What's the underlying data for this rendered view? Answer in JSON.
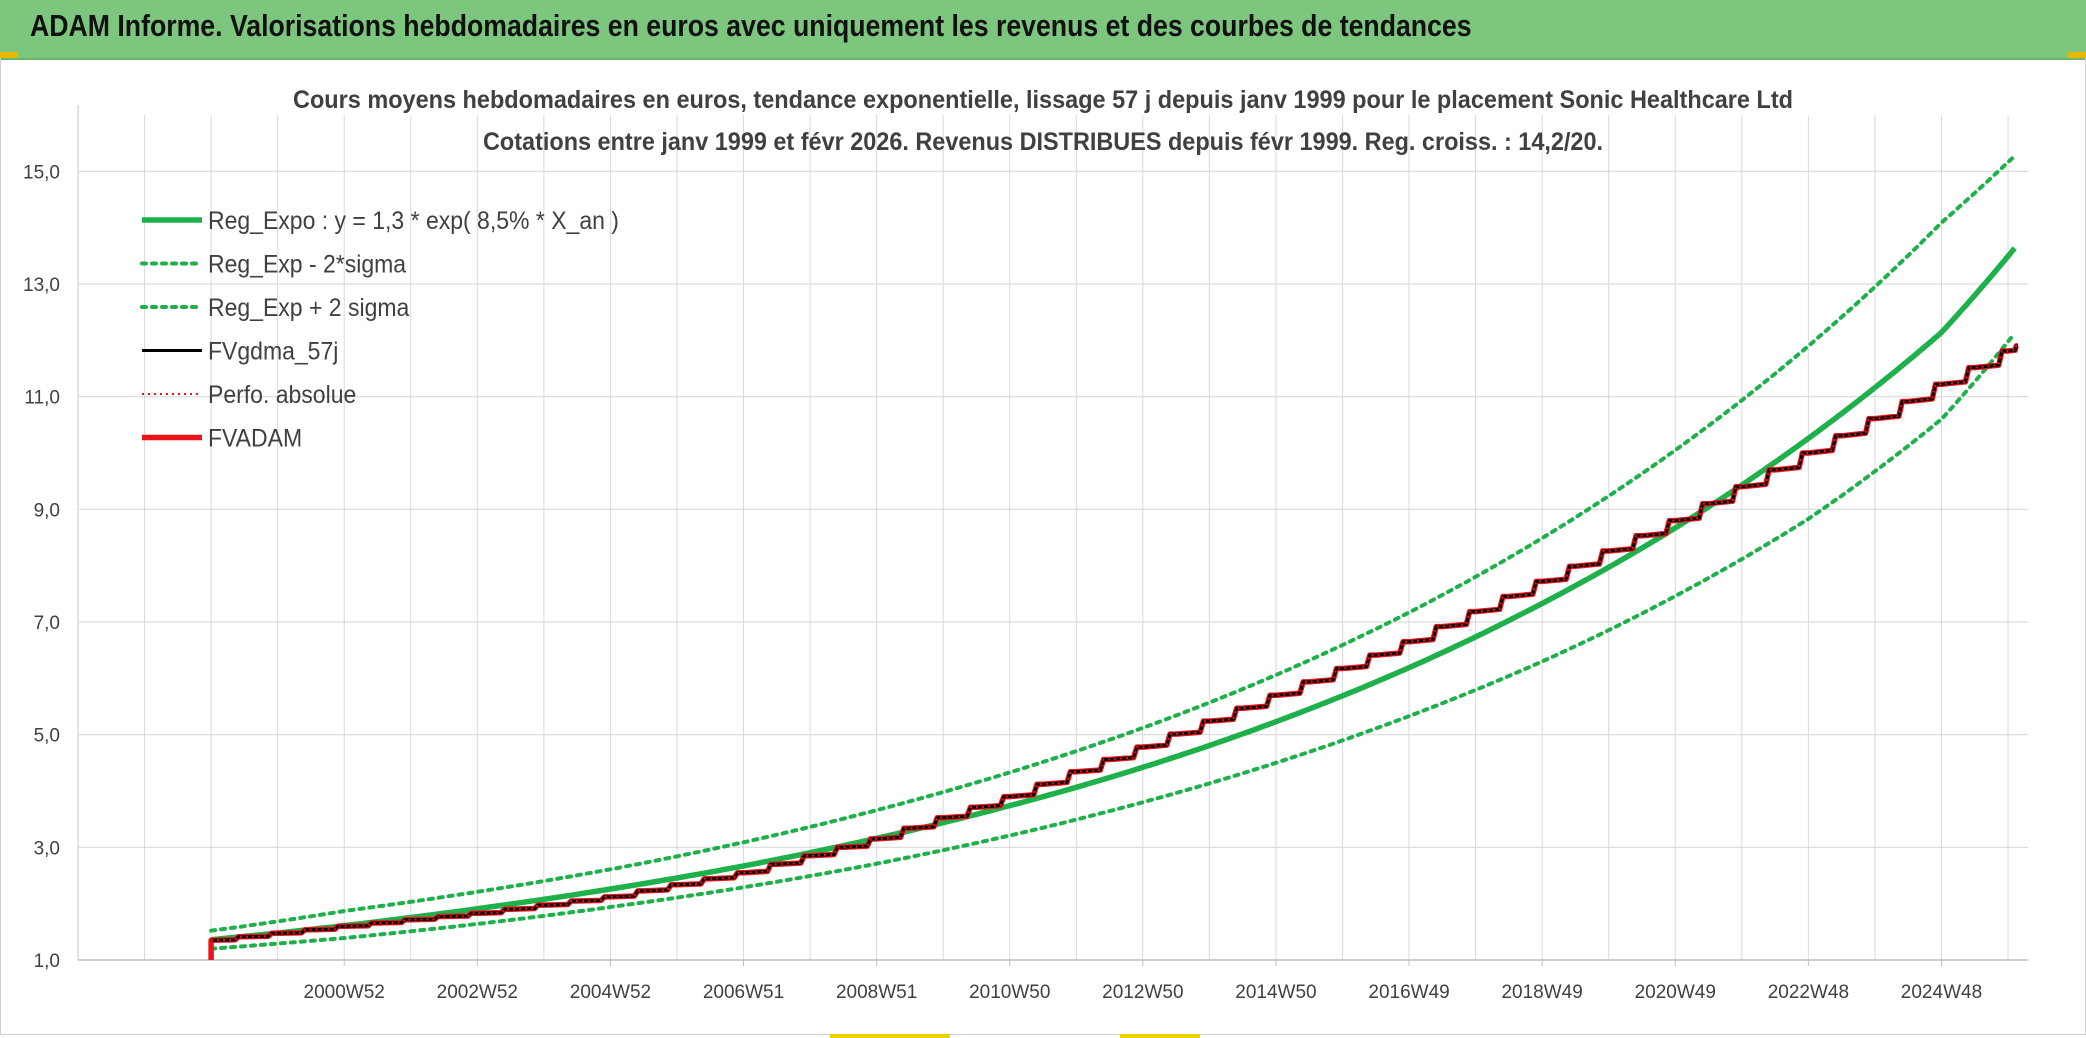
{
  "banner": {
    "title": "ADAM Informe. Valorisations hebdomadaires en euros avec uniquement les revenus et des courbes de tendances"
  },
  "colors": {
    "banner_bg": "#7dc67e",
    "reg_green": "#1db04b",
    "fvgdma_black": "#000000",
    "adam_red": "#e8141b",
    "grid": "#d9d9d9",
    "text": "#404040"
  },
  "chart_data": {
    "type": "line",
    "title": "Cours moyens hebdomadaires en euros, tendance exponentielle, lissage 57 j depuis janv 1999 pour le placement Sonic Healthcare Ltd",
    "subtitle": "Cotations entre janv 1999 et févr 2026. Revenus DISTRIBUES depuis févr 1999. Reg. croiss. : 14,2/20.",
    "xlabel": "",
    "ylabel": "",
    "ylim": [
      1.0,
      16.0
    ],
    "yticks": [
      "15,0",
      "13,0",
      "11,0",
      "9,0",
      "7,0",
      "5,0",
      "3,0",
      "1,0"
    ],
    "ytick_values": [
      15,
      13,
      11,
      9,
      7,
      5,
      3,
      1
    ],
    "xticks": [
      "2000W52",
      "2002W52",
      "2004W52",
      "2006W51",
      "2008W51",
      "2010W50",
      "2012W50",
      "2014W50",
      "2016W49",
      "2018W49",
      "2020W49",
      "2022W48",
      "2024W48"
    ],
    "xtick_years": [
      2001.0,
      2003.0,
      2005.0,
      2007.0,
      2009.0,
      2011.0,
      2013.0,
      2015.0,
      2017.0,
      2019.0,
      2021.0,
      2023.0,
      2025.0
    ],
    "xlim": [
      1997.0,
      2026.3
    ],
    "legend_position": "top-left",
    "regression": {
      "a": 1.3,
      "rate_percent": 8.5
    },
    "series": [
      {
        "name": "Reg_Expo : y = 1,3 * exp( 8,5% *  X_an )",
        "style": "solid-thick",
        "points": [
          [
            1999.0,
            1.36
          ],
          [
            2001.0,
            1.61
          ],
          [
            2003.0,
            1.91
          ],
          [
            2005.0,
            2.26
          ],
          [
            2007.0,
            2.67
          ],
          [
            2009.0,
            3.16
          ],
          [
            2011.0,
            3.74
          ],
          [
            2013.0,
            4.42
          ],
          [
            2015.0,
            5.23
          ],
          [
            2017.0,
            6.19
          ],
          [
            2019.0,
            7.33
          ],
          [
            2021.0,
            8.67
          ],
          [
            2023.0,
            10.26
          ],
          [
            2025.0,
            12.14
          ],
          [
            2026.15,
            13.71
          ]
        ]
      },
      {
        "name": "Reg_Exp - 2*sigma",
        "style": "dotted",
        "points": [
          [
            1999.0,
            1.2
          ],
          [
            2001.0,
            1.39
          ],
          [
            2003.0,
            1.64
          ],
          [
            2005.0,
            1.94
          ],
          [
            2007.0,
            2.29
          ],
          [
            2009.0,
            2.71
          ],
          [
            2011.0,
            3.21
          ],
          [
            2013.0,
            3.8
          ],
          [
            2015.0,
            4.5
          ],
          [
            2017.0,
            5.33
          ],
          [
            2019.0,
            6.3
          ],
          [
            2021.0,
            7.46
          ],
          [
            2023.0,
            8.83
          ],
          [
            2025.0,
            10.6
          ],
          [
            2026.15,
            12.2
          ]
        ]
      },
      {
        "name": "Reg_Exp + 2 sigma",
        "style": "dotted",
        "points": [
          [
            1999.0,
            1.52
          ],
          [
            2001.0,
            1.87
          ],
          [
            2003.0,
            2.21
          ],
          [
            2005.0,
            2.61
          ],
          [
            2007.0,
            3.09
          ],
          [
            2009.0,
            3.66
          ],
          [
            2011.0,
            4.33
          ],
          [
            2013.0,
            5.12
          ],
          [
            2015.0,
            6.06
          ],
          [
            2017.0,
            7.17
          ],
          [
            2019.0,
            8.49
          ],
          [
            2021.0,
            10.05
          ],
          [
            2023.0,
            11.9
          ],
          [
            2025.0,
            14.09
          ],
          [
            2026.15,
            15.33
          ]
        ]
      },
      {
        "name": "FVgdma_57j",
        "style": "solid-black",
        "points": [
          [
            1999.0,
            1.35
          ],
          [
            2001.0,
            1.6
          ],
          [
            2003.0,
            1.83
          ],
          [
            2005.0,
            2.12
          ],
          [
            2007.0,
            2.55
          ],
          [
            2009.0,
            3.15
          ],
          [
            2011.0,
            3.9
          ],
          [
            2013.0,
            4.78
          ],
          [
            2015.0,
            5.7
          ],
          [
            2017.0,
            6.65
          ],
          [
            2019.0,
            7.72
          ],
          [
            2021.0,
            8.8
          ],
          [
            2023.0,
            10.0
          ],
          [
            2025.0,
            11.22
          ],
          [
            2026.15,
            11.9
          ]
        ]
      },
      {
        "name": "Perfo. absolue",
        "style": "dotted-red",
        "points": [
          [
            1999.0,
            1.35
          ],
          [
            2001.0,
            1.6
          ],
          [
            2003.0,
            1.83
          ],
          [
            2005.0,
            2.12
          ],
          [
            2007.0,
            2.55
          ],
          [
            2009.0,
            3.15
          ],
          [
            2011.0,
            3.9
          ],
          [
            2013.0,
            4.78
          ],
          [
            2015.0,
            5.7
          ],
          [
            2017.0,
            6.65
          ],
          [
            2019.0,
            7.72
          ],
          [
            2021.0,
            8.8
          ],
          [
            2023.0,
            10.0
          ],
          [
            2025.0,
            11.22
          ],
          [
            2026.15,
            11.9
          ]
        ]
      },
      {
        "name": "FVADAM",
        "style": "step-red",
        "start_value": 1.0,
        "points": [
          [
            1999.0,
            1.35
          ],
          [
            2001.0,
            1.6
          ],
          [
            2003.0,
            1.83
          ],
          [
            2005.0,
            2.12
          ],
          [
            2007.0,
            2.55
          ],
          [
            2009.0,
            3.15
          ],
          [
            2011.0,
            3.9
          ],
          [
            2013.0,
            4.78
          ],
          [
            2015.0,
            5.7
          ],
          [
            2017.0,
            6.65
          ],
          [
            2019.0,
            7.72
          ],
          [
            2021.0,
            8.8
          ],
          [
            2023.0,
            10.0
          ],
          [
            2025.0,
            11.22
          ],
          [
            2026.15,
            11.9
          ]
        ]
      }
    ]
  }
}
